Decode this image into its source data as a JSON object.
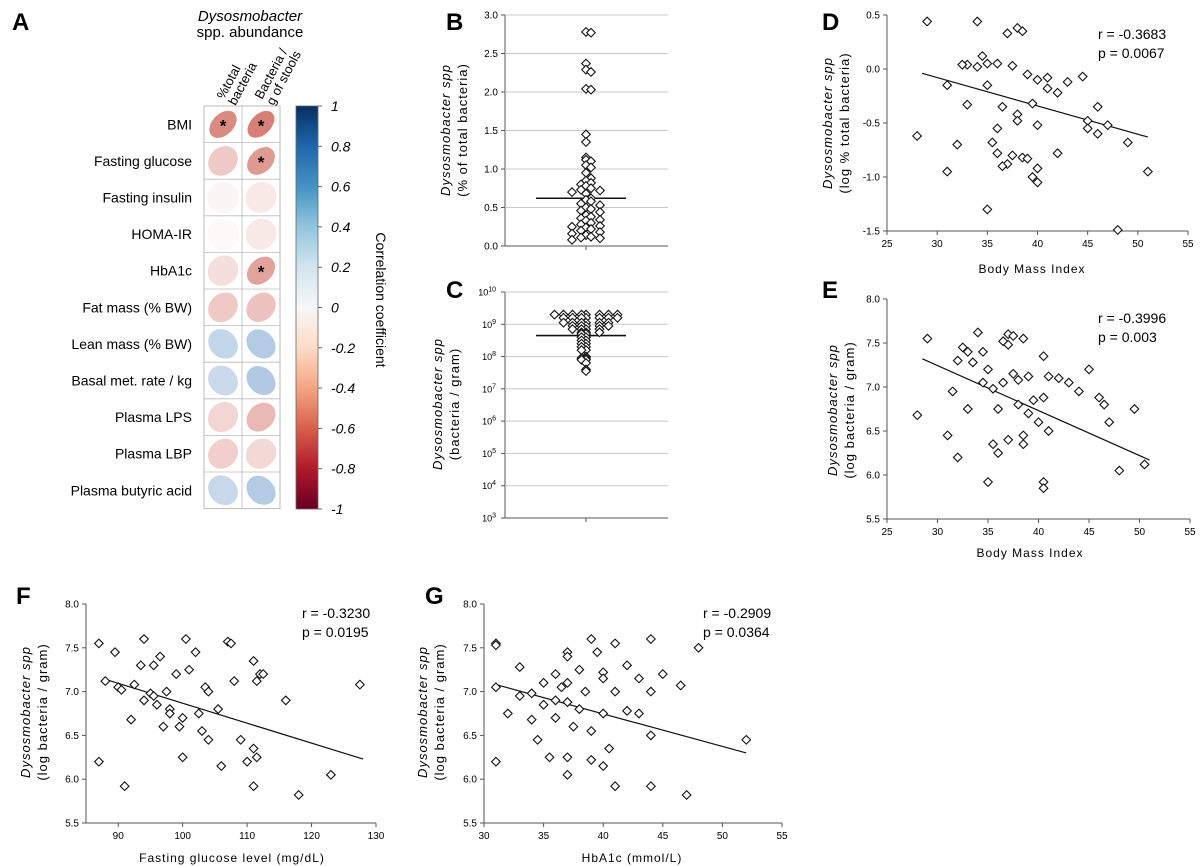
{
  "panel_a": {
    "letter": "A",
    "header_title": "Dysosmobacter",
    "header_subtitle": "spp. abundance",
    "col1_line1": "%total",
    "col1_line2": "bacteria",
    "col2_line1": "Bacteria /",
    "col2_line2": "g of stools",
    "colorbar_title": "Correlation coefficient",
    "colorbar_ticks": [
      "1",
      "0.8",
      "0.6",
      "0.4",
      "0.2",
      "0",
      "-0.2",
      "-0.4",
      "-0.6",
      "-0.8",
      "-1"
    ],
    "star": "*"
  },
  "scatter_text": {
    "letter_b": "B",
    "letter_c": "C",
    "letter_d": "D",
    "letter_e": "E",
    "letter_f": "F",
    "letter_g": "G",
    "ylabel_species": "Dysosmobacter spp",
    "ylabel_b_unit": "(% of total bacteria)",
    "ylabel_c_unit": "(bacteria / gram)",
    "ylabel_d_unit": "(log % total bacteria)",
    "ylabel_log_gram": "(log bacteria / gram)",
    "xlabel_bmi": "Body Mass Index",
    "xlabel_glucose": "Fasting glucose level (mg/dL)",
    "xlabel_hba1c": "HbA1c (mmol/L)",
    "stat_d_r": "r = -0.3683",
    "stat_d_p": "p = 0.0067",
    "stat_e_r": "r = -0.3996",
    "stat_e_p": "p = 0.003",
    "stat_f_r": "r = -0.3230",
    "stat_f_p": "p = 0.0195",
    "stat_g_r": "r = -0.2909",
    "stat_g_p": "p = 0.0364"
  },
  "chart_data": [
    {
      "panel": "A",
      "type": "heatmap",
      "rows": [
        "BMI",
        "Fasting glucose",
        "Fasting insulin",
        "HOMA-IR",
        "HbA1c",
        "Fat mass (% BW)",
        "Lean mass (% BW)",
        "Basal met. rate / kg",
        "Plasma LPS",
        "Plasma LBP",
        "Plasma butyric acid"
      ],
      "columns": [
        "%total bacteria",
        "Bacteria / g of stools"
      ],
      "values": [
        [
          -0.37,
          -0.4
        ],
        [
          -0.17,
          -0.32
        ],
        [
          -0.03,
          -0.07
        ],
        [
          -0.02,
          -0.07
        ],
        [
          -0.1,
          -0.29
        ],
        [
          -0.17,
          -0.19
        ],
        [
          0.17,
          0.21
        ],
        [
          0.15,
          0.22
        ],
        [
          -0.13,
          -0.22
        ],
        [
          -0.15,
          -0.12
        ],
        [
          0.16,
          0.21
        ]
      ],
      "significant": [
        [
          true,
          true
        ],
        [
          false,
          true
        ],
        [
          false,
          false
        ],
        [
          false,
          false
        ],
        [
          false,
          true
        ],
        [
          false,
          false
        ],
        [
          false,
          false
        ],
        [
          false,
          false
        ],
        [
          false,
          false
        ],
        [
          false,
          false
        ],
        [
          false,
          false
        ]
      ],
      "colorbar_range": [
        -1,
        1
      ],
      "colors": {
        "negative": "#c0392b",
        "positive": "#2166ac"
      }
    },
    {
      "panel": "B",
      "type": "scatter",
      "ylim": [
        0,
        3.0
      ],
      "y_ticks": [
        0.0,
        0.5,
        1.0,
        1.5,
        2.0,
        2.5,
        3.0
      ],
      "grid": true,
      "median": 0.62,
      "y": [
        2.78,
        2.77,
        2.37,
        2.29,
        2.26,
        2.04,
        2.03,
        1.45,
        1.35,
        1.15,
        1.12,
        1.1,
        1.05,
        1.02,
        0.95,
        0.88,
        0.85,
        0.82,
        0.8,
        0.78,
        0.75,
        0.73,
        0.72,
        0.7,
        0.68,
        0.62,
        0.6,
        0.58,
        0.55,
        0.53,
        0.5,
        0.48,
        0.46,
        0.44,
        0.4,
        0.38,
        0.36,
        0.34,
        0.33,
        0.3,
        0.28,
        0.26,
        0.25,
        0.24,
        0.22,
        0.2,
        0.18,
        0.16,
        0.14,
        0.12,
        0.11,
        0.1,
        0.08
      ]
    },
    {
      "panel": "C",
      "type": "scatter",
      "y_log": true,
      "ylim_exp": [
        3,
        10
      ],
      "y_ticks_exp": [
        3,
        4,
        5,
        6,
        7,
        8,
        9,
        10
      ],
      "grid": true,
      "median_log": 8.65,
      "y_log10": [
        9.3,
        9.3,
        9.3,
        9.3,
        9.3,
        9.3,
        9.3,
        9.3,
        9.2,
        9.2,
        9.2,
        9.2,
        9.2,
        9.2,
        9.2,
        9.05,
        9.05,
        9.05,
        9.05,
        9.05,
        9.05,
        8.95,
        8.95,
        8.95,
        8.95,
        8.95,
        8.85,
        8.85,
        8.85,
        8.85,
        8.75,
        8.75,
        8.75,
        8.7,
        8.7,
        8.6,
        8.6,
        8.5,
        8.5,
        8.4,
        8.4,
        8.3,
        8.3,
        8.2,
        8.2,
        8.0,
        7.95,
        7.95,
        7.9,
        7.9,
        7.8,
        7.6,
        7.55
      ]
    },
    {
      "panel": "D",
      "type": "scatter",
      "xlabel": "Body Mass Index",
      "ylabel": "Dysosmobacter spp (log % total bacteria)",
      "xlim": [
        25,
        55
      ],
      "ylim": [
        -1.5,
        0.5
      ],
      "x_ticks": [
        25,
        30,
        35,
        40,
        45,
        50,
        55
      ],
      "y_ticks": [
        -1.5,
        -1.0,
        -0.5,
        0.0,
        0.5
      ],
      "fit_line": {
        "x": [
          28.5,
          51.0
        ],
        "y": [
          -0.04,
          -0.63
        ]
      },
      "x": [
        29,
        34,
        38,
        38.5,
        37,
        34.5,
        35,
        33,
        32.5,
        34,
        36,
        37.5,
        39,
        40,
        41,
        42,
        43,
        44.5,
        31,
        33,
        35,
        36.5,
        38,
        39.5,
        41,
        36,
        38,
        40,
        45,
        46,
        47,
        45,
        46,
        28,
        32,
        35.5,
        36,
        37,
        37.5,
        38.5,
        39,
        40,
        42,
        49,
        31,
        36.5,
        39.5,
        40,
        51,
        35,
        48
      ],
      "y": [
        0.44,
        0.44,
        0.38,
        0.35,
        0.33,
        0.12,
        0.05,
        0.04,
        0.04,
        0.02,
        0.05,
        0.03,
        -0.05,
        -0.1,
        -0.08,
        -0.22,
        -0.12,
        -0.07,
        -0.15,
        -0.33,
        -0.15,
        -0.35,
        -0.42,
        -0.32,
        -0.18,
        -0.55,
        -0.48,
        -0.52,
        -0.48,
        -0.35,
        -0.52,
        -0.55,
        -0.6,
        -0.62,
        -0.7,
        -0.68,
        -0.78,
        -0.88,
        -0.8,
        -0.82,
        -0.83,
        -0.92,
        -0.78,
        -0.68,
        -0.95,
        -0.9,
        -1.0,
        -1.05,
        -0.95,
        -1.3,
        -1.49
      ]
    },
    {
      "panel": "E",
      "type": "scatter",
      "xlabel": "Body Mass Index",
      "ylabel": "Dysosmobacter spp (log bacteria / gram)",
      "xlim": [
        25,
        55
      ],
      "ylim": [
        5.5,
        8.0
      ],
      "x_ticks": [
        25,
        30,
        35,
        40,
        45,
        50,
        55
      ],
      "y_ticks": [
        5.5,
        6.0,
        6.5,
        7.0,
        7.5,
        8.0
      ],
      "fit_line": {
        "x": [
          28.5,
          51.0
        ],
        "y": [
          7.32,
          6.17
        ]
      },
      "x": [
        29,
        34,
        37,
        37.5,
        38.5,
        32.5,
        33,
        34.5,
        36.5,
        37,
        40.5,
        32,
        33.5,
        35,
        37.5,
        39,
        41,
        42,
        43,
        45,
        31.5,
        34.5,
        35.5,
        36.5,
        38,
        39.5,
        40.5,
        44,
        46,
        46.5,
        49.5,
        28,
        33,
        36,
        38,
        39,
        40,
        47,
        31,
        37,
        35.5,
        38.5,
        41,
        32,
        36,
        48,
        50.5,
        40.5,
        35,
        40.5,
        38.5
      ],
      "y": [
        7.55,
        7.62,
        7.6,
        7.58,
        7.55,
        7.45,
        7.4,
        7.4,
        7.52,
        7.48,
        7.35,
        7.3,
        7.28,
        7.2,
        7.15,
        7.12,
        7.12,
        7.1,
        7.05,
        7.2,
        6.95,
        7.05,
        6.98,
        7.05,
        7.08,
        6.85,
        6.88,
        6.95,
        6.88,
        6.8,
        6.75,
        6.68,
        6.75,
        6.75,
        6.8,
        6.7,
        6.6,
        6.6,
        6.45,
        6.4,
        6.35,
        6.35,
        6.5,
        6.2,
        6.25,
        6.05,
        6.12,
        5.92,
        5.92,
        5.85,
        6.45
      ]
    },
    {
      "panel": "F",
      "type": "scatter",
      "xlabel": "Fasting glucose level (mg/dL)",
      "ylabel": "Dysosmobacter spp (log bacteria / gram)",
      "xlim": [
        85,
        130
      ],
      "ylim": [
        5.5,
        8.0
      ],
      "x_ticks": [
        90,
        100,
        110,
        120,
        130
      ],
      "y_ticks": [
        5.5,
        6.0,
        6.5,
        7.0,
        7.5,
        8.0
      ],
      "fit_line": {
        "x": [
          88,
          128
        ],
        "y": [
          7.14,
          6.23
        ]
      },
      "x": [
        87,
        89.5,
        94,
        100.5,
        102,
        107,
        107.5,
        111,
        112,
        93.5,
        96.5,
        101,
        111.5,
        88,
        92.5,
        95.5,
        95,
        99,
        94,
        97.5,
        103.5,
        104,
        108,
        112.5,
        127.5,
        90,
        90.5,
        96,
        98,
        102.5,
        105.5,
        98,
        100,
        95.5,
        116,
        92,
        97,
        99.5,
        103,
        104,
        109,
        111,
        111.5,
        87,
        91,
        100,
        106,
        110,
        123,
        111,
        118
      ],
      "y": [
        7.55,
        7.45,
        7.6,
        7.6,
        7.45,
        7.57,
        7.55,
        7.35,
        7.2,
        7.3,
        7.4,
        7.25,
        7.12,
        7.12,
        7.08,
        7.3,
        6.98,
        7.2,
        6.9,
        7.0,
        7.05,
        7.0,
        7.12,
        7.2,
        7.08,
        7.05,
        7.02,
        6.85,
        6.8,
        6.75,
        6.8,
        6.75,
        6.7,
        6.95,
        6.9,
        6.68,
        6.6,
        6.6,
        6.55,
        6.45,
        6.45,
        6.35,
        6.25,
        6.2,
        5.92,
        6.25,
        6.15,
        6.2,
        6.05,
        5.92,
        5.82
      ]
    },
    {
      "panel": "G",
      "type": "scatter",
      "xlabel": "HbA1c (mmol/L)",
      "ylabel": "Dysosmobacter spp (log bacteria / gram)",
      "xlim": [
        30,
        55
      ],
      "ylim": [
        5.5,
        8.0
      ],
      "x_ticks": [
        30,
        35,
        40,
        45,
        50,
        55
      ],
      "y_ticks": [
        5.5,
        6.0,
        6.5,
        7.0,
        7.5,
        8.0
      ],
      "fit_line": {
        "x": [
          31,
          52
        ],
        "y": [
          7.08,
          6.3
        ]
      },
      "x": [
        31,
        31,
        37,
        39,
        41,
        44,
        48,
        37,
        39.5,
        42,
        45,
        33,
        36,
        38,
        40,
        43,
        31,
        35,
        36.5,
        37,
        38.5,
        40,
        41,
        44,
        46.5,
        33,
        34,
        35,
        36,
        37,
        38,
        40,
        42,
        43,
        32,
        34,
        36,
        37.5,
        39,
        40.5,
        44,
        52,
        34.5,
        35.5,
        37,
        39,
        40,
        31,
        37,
        41,
        44,
        47
      ],
      "y": [
        7.55,
        7.53,
        7.45,
        7.6,
        7.55,
        7.6,
        7.5,
        7.4,
        7.45,
        7.3,
        7.2,
        7.28,
        7.2,
        7.25,
        7.22,
        7.15,
        7.05,
        7.1,
        7.05,
        7.1,
        7.0,
        7.15,
        7.0,
        7.0,
        7.07,
        6.95,
        6.98,
        6.85,
        6.9,
        6.88,
        6.8,
        6.75,
        6.78,
        6.75,
        6.75,
        6.68,
        6.7,
        6.6,
        6.55,
        6.35,
        6.5,
        6.45,
        6.45,
        6.25,
        6.25,
        6.22,
        6.15,
        6.2,
        6.05,
        5.92,
        5.92,
        5.82
      ]
    }
  ]
}
